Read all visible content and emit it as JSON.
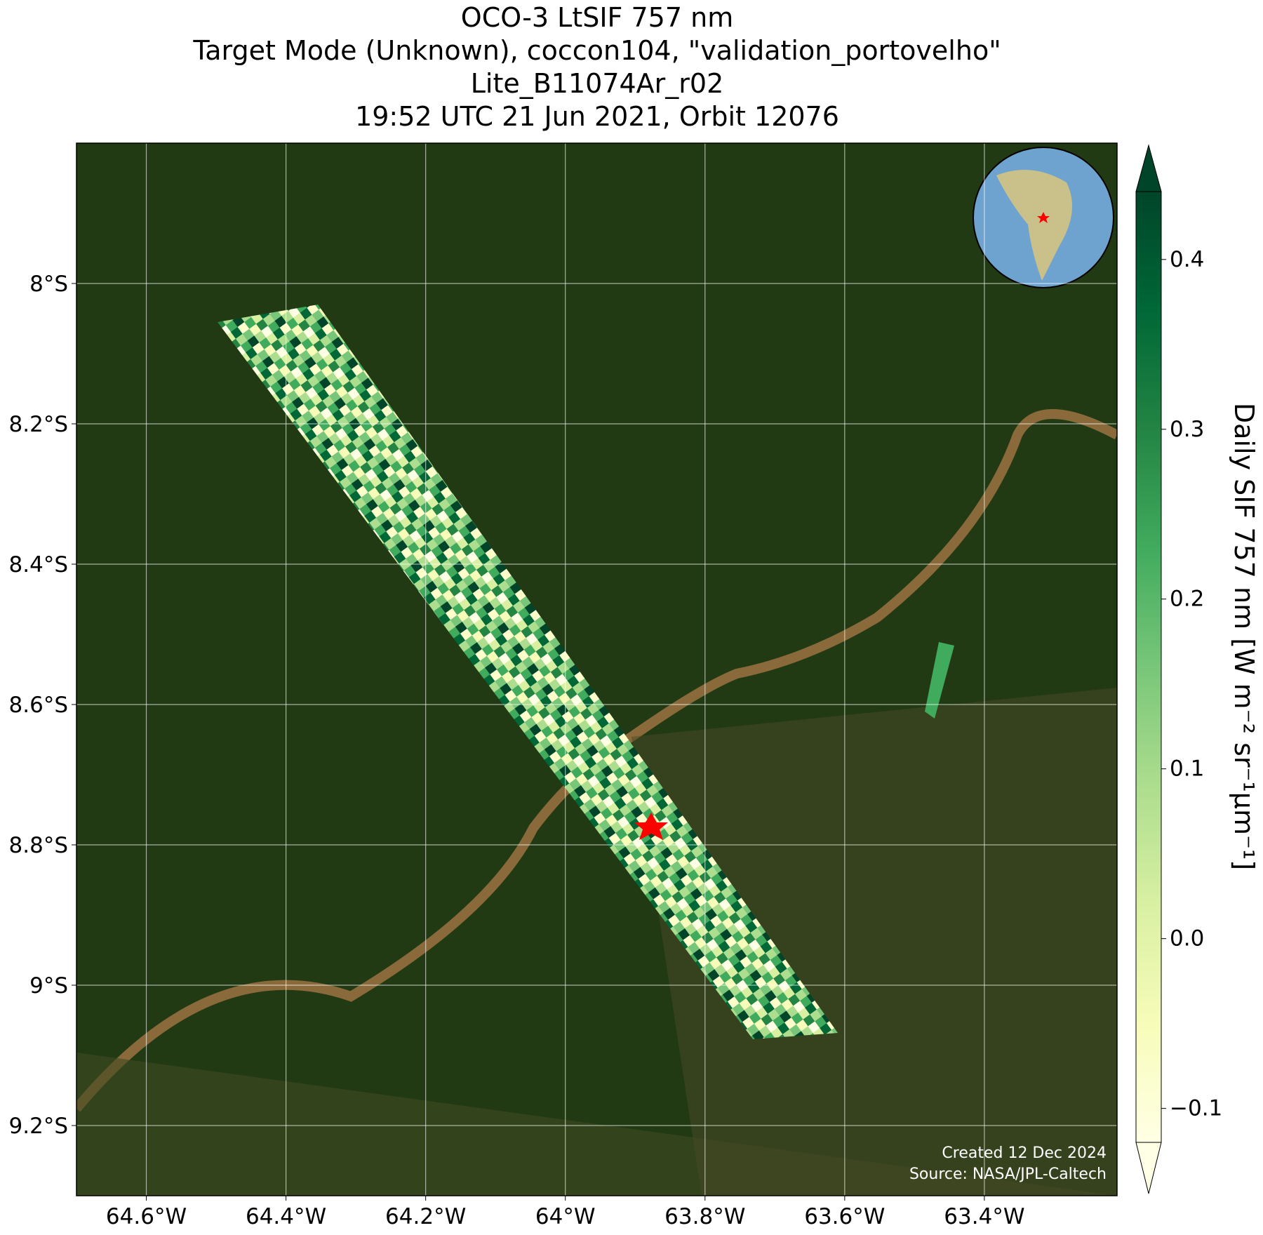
{
  "chart_data": {
    "type": "map",
    "title": [
      "OCO-3 LtSIF 757 nm",
      "Target Mode (Unknown), coccon104, \"validation_portovelho\"",
      "Lite_B11074Ar_r02",
      "19:52 UTC 21 Jun 2021, Orbit 12076"
    ],
    "xlim": [
      -64.7,
      -63.21
    ],
    "xticks": [
      {
        "value": -64.6,
        "label": "64.6°W"
      },
      {
        "value": -64.4,
        "label": "64.4°W"
      },
      {
        "value": -64.2,
        "label": "64.2°W"
      },
      {
        "value": -64.0,
        "label": "64°W"
      },
      {
        "value": -63.8,
        "label": "63.8°W"
      },
      {
        "value": -63.6,
        "label": "63.6°W"
      },
      {
        "value": -63.4,
        "label": "63.4°W"
      }
    ],
    "ylim": [
      -7.8,
      -9.3
    ],
    "yticks": [
      {
        "value": -8.0,
        "label": "8°S"
      },
      {
        "value": -8.2,
        "label": "8.2°S"
      },
      {
        "value": -8.4,
        "label": "8.4°S"
      },
      {
        "value": -8.6,
        "label": "8.6°S"
      },
      {
        "value": -8.8,
        "label": "8.8°S"
      },
      {
        "value": -9.0,
        "label": "9°S"
      },
      {
        "value": -9.2,
        "label": "9.2°S"
      }
    ],
    "grid": true,
    "colorbar": {
      "label": "Daily SIF 757 nm [W m⁻² sr⁻¹µm⁻¹]",
      "lim": [
        -0.12,
        0.44
      ],
      "ticks": [
        {
          "value": -0.1,
          "label": "−0.1"
        },
        {
          "value": 0.0,
          "label": "0.0"
        },
        0.1,
        0.2,
        0.3,
        0.4
      ],
      "colors": [
        "#ffffe5",
        "#f7fcb9",
        "#d9f0a3",
        "#addd8e",
        "#78c679",
        "#41ab5d",
        "#238443",
        "#006837",
        "#004529"
      ]
    },
    "credits": [
      "Created 12 Dec 2024",
      "Source: NASA/JPL-Caltech"
    ]
  }
}
